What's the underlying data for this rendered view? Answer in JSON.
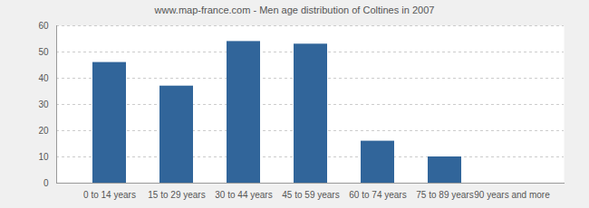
{
  "chart_data": {
    "type": "bar",
    "title": "www.map-france.com - Men age distribution of Coltines in 2007",
    "categories": [
      "0 to 14 years",
      "15 to 29 years",
      "30 to 44 years",
      "45 to 59 years",
      "60 to 74 years",
      "75 to 89 years",
      "90 years and more"
    ],
    "values": [
      46,
      37,
      54,
      53,
      16,
      10,
      0
    ],
    "color": "#31659a",
    "ylim": [
      0,
      60
    ],
    "yticks": [
      0,
      10,
      20,
      30,
      40,
      50,
      60
    ],
    "grid": true
  }
}
